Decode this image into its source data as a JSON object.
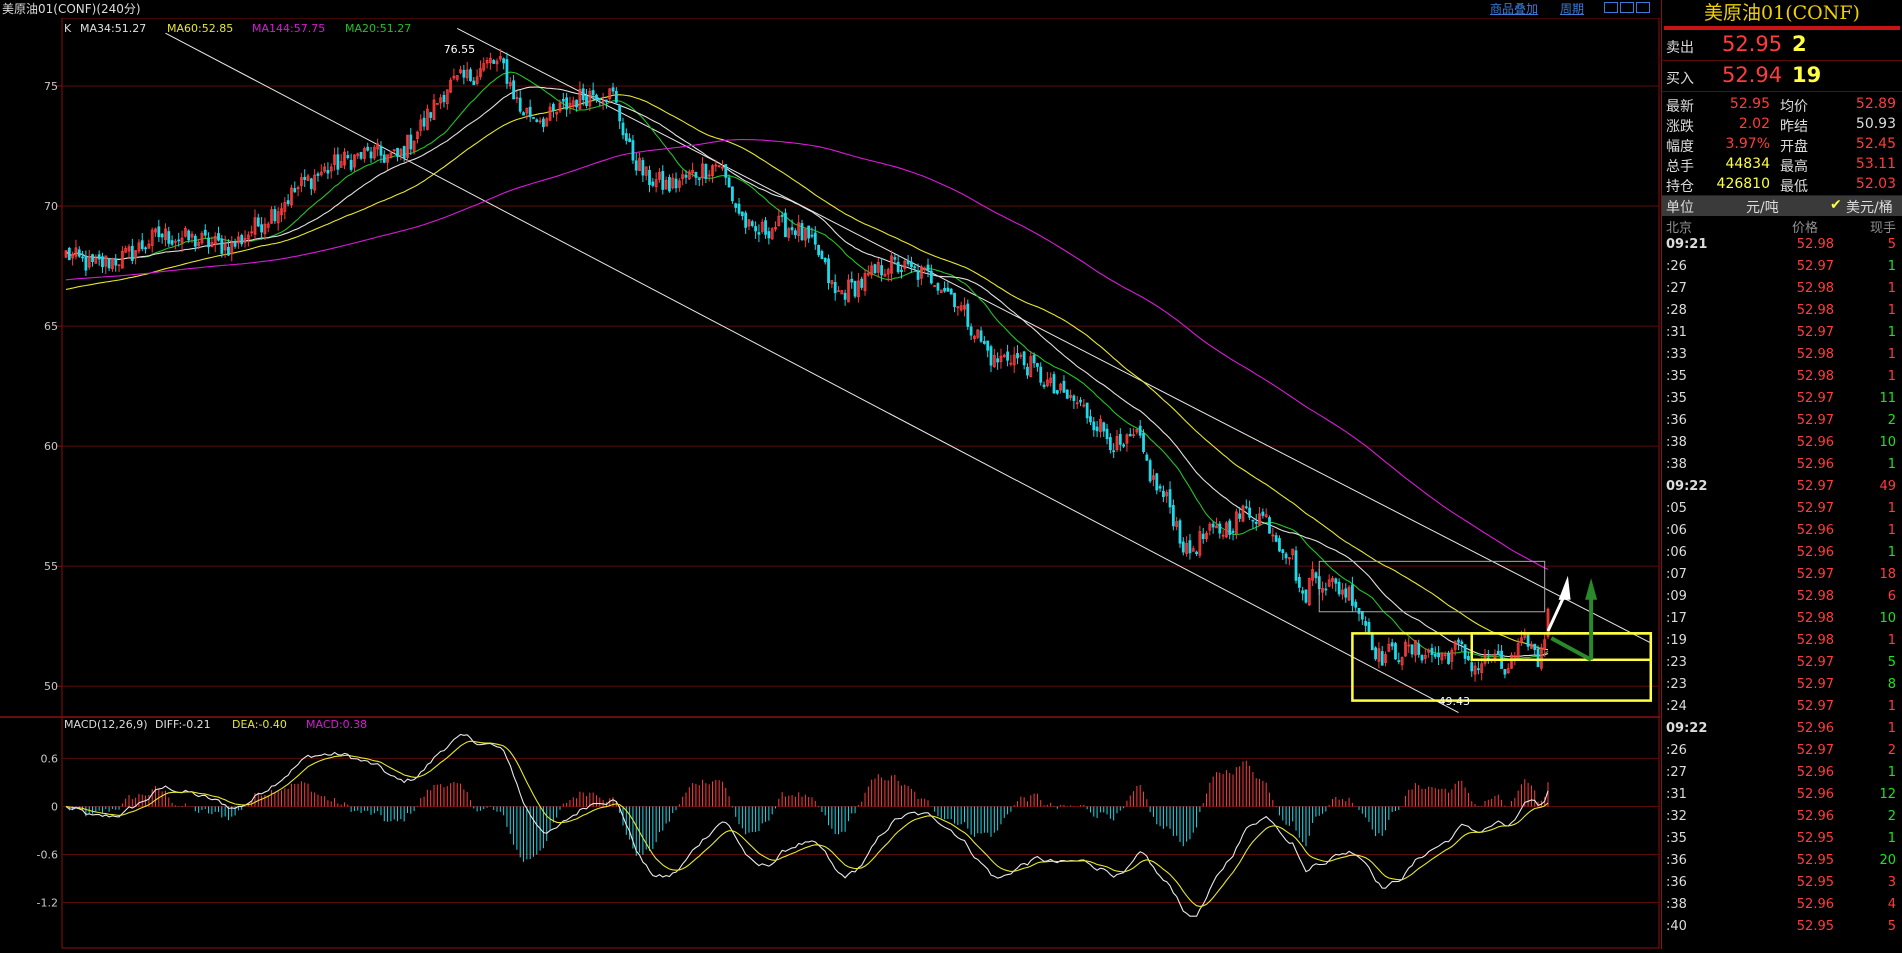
{
  "window": {
    "title": "美原油01(CONF)(240分)",
    "link_overlay": "商品叠加",
    "link_period": "周期"
  },
  "legend": {
    "k": "K",
    "ma34": "MA34:51.27",
    "ma60": "MA60:52.85",
    "ma144": "MA144:57.75",
    "ma20": "MA20:51.27"
  },
  "macd_legend": {
    "name": "MACD(12,26,9)",
    "diff": "DIFF:-0.21",
    "dea": "DEA:-0.40",
    "macd": "MACD:0.38"
  },
  "colors": {
    "up": "#ff3c3c",
    "down": "#20d8e8",
    "ma34": "#e0e0e0",
    "ma60": "#e6e62e",
    "ma144": "#d81ad8",
    "ma20": "#21c421",
    "grid": "#5a0c0c",
    "yellow": "#ffff40",
    "green_text": "#20e020"
  },
  "chart_data": [
    {
      "type": "candlestick",
      "title": "美原油01(CONF)(240分)",
      "y_ticks": [
        75,
        70,
        65,
        60,
        55,
        50
      ],
      "ylim": [
        48.8,
        77.5
      ],
      "annotations": {
        "high_label": "76.55",
        "low_label": "49.43"
      },
      "series": [
        {
          "name": "MA34",
          "last": 51.27
        },
        {
          "name": "MA60",
          "last": 52.85
        },
        {
          "name": "MA144",
          "last": 57.75
        },
        {
          "name": "MA20",
          "last": 51.27
        }
      ],
      "price_path": [
        [
          0,
          68.0
        ],
        [
          8,
          67.5
        ],
        [
          18,
          67.9
        ],
        [
          28,
          68.8
        ],
        [
          38,
          68.6
        ],
        [
          50,
          68.3
        ],
        [
          62,
          69.7
        ],
        [
          72,
          71.0
        ],
        [
          82,
          71.8
        ],
        [
          92,
          72.2
        ],
        [
          100,
          72.0
        ],
        [
          108,
          73.5
        ],
        [
          115,
          75.0
        ],
        [
          122,
          75.4
        ],
        [
          128,
          76.0
        ],
        [
          132,
          75.8
        ],
        [
          137,
          74.0
        ],
        [
          145,
          73.6
        ],
        [
          153,
          74.4
        ],
        [
          160,
          74.8
        ],
        [
          165,
          74.6
        ],
        [
          170,
          72.3
        ],
        [
          175,
          71.2
        ],
        [
          182,
          70.8
        ],
        [
          190,
          71.4
        ],
        [
          197,
          71.8
        ],
        [
          202,
          70.0
        ],
        [
          207,
          68.8
        ],
        [
          214,
          69.2
        ],
        [
          220,
          69.1
        ],
        [
          227,
          68.0
        ],
        [
          232,
          66.3
        ],
        [
          240,
          66.8
        ],
        [
          248,
          67.6
        ],
        [
          255,
          67.3
        ],
        [
          262,
          67.0
        ],
        [
          268,
          66.2
        ],
        [
          274,
          64.8
        ],
        [
          280,
          63.5
        ],
        [
          285,
          63.8
        ],
        [
          292,
          63.2
        ],
        [
          298,
          62.3
        ],
        [
          305,
          61.8
        ],
        [
          312,
          60.8
        ],
        [
          318,
          59.8
        ],
        [
          323,
          60.4
        ],
        [
          328,
          58.5
        ],
        [
          333,
          57.5
        ],
        [
          338,
          55.5
        ],
        [
          343,
          56.2
        ],
        [
          350,
          56.6
        ],
        [
          356,
          57.3
        ],
        [
          362,
          57.0
        ],
        [
          366,
          56.0
        ],
        [
          370,
          55.4
        ],
        [
          373,
          53.5
        ],
        [
          376,
          54.7
        ],
        [
          380,
          54.3
        ],
        [
          384,
          54.1
        ],
        [
          388,
          53.8
        ],
        [
          392,
          52.6
        ],
        [
          396,
          51.2
        ],
        [
          400,
          51.4
        ],
        [
          408,
          51.5
        ],
        [
          415,
          51.2
        ],
        [
          420,
          51.6
        ],
        [
          425,
          50.8
        ],
        [
          430,
          51.2
        ],
        [
          434,
          50.6
        ],
        [
          438,
          51.4
        ],
        [
          441,
          52.0
        ],
        [
          444,
          51.0
        ],
        [
          447,
          52.9
        ]
      ],
      "n_bars": 448
    },
    {
      "type": "macd",
      "name": "MACD(12,26,9)",
      "y_ticks": [
        0.6,
        0,
        -0.6,
        -1.2
      ],
      "ylim": [
        -1.78,
        1.08
      ],
      "diff_last": -0.21,
      "dea_last": -0.4,
      "macd_last": 0.38
    }
  ],
  "panel": {
    "title": "美原油01(CONF)",
    "sell": {
      "label": "卖出",
      "price": "52.95",
      "vol": "2"
    },
    "buy": {
      "label": "买入",
      "price": "52.94",
      "vol": "19"
    },
    "stats": [
      {
        "l1": "最新",
        "v1": "52.95",
        "c1": "#ff3c3c",
        "l2": "均价",
        "v2": "52.89",
        "c2": "#ff3c3c"
      },
      {
        "l1": "涨跌",
        "v1": "2.02",
        "c1": "#ff3c3c",
        "l2": "昨结",
        "v2": "50.93",
        "c2": "#dcdcdc"
      },
      {
        "l1": "幅度",
        "v1": "3.97%",
        "c1": "#ff3c3c",
        "l2": "开盘",
        "v2": "52.45",
        "c2": "#ff3c3c"
      },
      {
        "l1": "总手",
        "v1": "44834",
        "c1": "#ffff40",
        "l2": "最高",
        "v2": "53.11",
        "c2": "#ff3c3c"
      },
      {
        "l1": "持仓",
        "v1": "426810",
        "c1": "#ffff40",
        "l2": "最低",
        "v2": "52.03",
        "c2": "#ff3c3c"
      }
    ],
    "unit": {
      "label": "单位",
      "val1": "元/吨",
      "check": "✔",
      "val2": "美元/桶"
    },
    "tick_header": {
      "time": "北京",
      "price": "价格",
      "vol": "现手"
    },
    "ticks": [
      {
        "t": "09:21",
        "p": "52.98",
        "v": "5",
        "c": "#ff3c3c"
      },
      {
        "t": ":26",
        "p": "52.97",
        "v": "1",
        "c": "#20e020"
      },
      {
        "t": ":27",
        "p": "52.98",
        "v": "1",
        "c": "#ff3c3c"
      },
      {
        "t": ":28",
        "p": "52.98",
        "v": "1",
        "c": "#ff3c3c"
      },
      {
        "t": ":31",
        "p": "52.97",
        "v": "1",
        "c": "#20e020"
      },
      {
        "t": ":33",
        "p": "52.98",
        "v": "1",
        "c": "#ff3c3c"
      },
      {
        "t": ":35",
        "p": "52.98",
        "v": "1",
        "c": "#ff3c3c"
      },
      {
        "t": ":35",
        "p": "52.97",
        "v": "11",
        "c": "#20e020"
      },
      {
        "t": ":36",
        "p": "52.97",
        "v": "2",
        "c": "#20e020"
      },
      {
        "t": ":38",
        "p": "52.96",
        "v": "10",
        "c": "#20e020"
      },
      {
        "t": ":38",
        "p": "52.96",
        "v": "1",
        "c": "#20e020"
      },
      {
        "t": "09:22",
        "p": "52.97",
        "v": "49",
        "c": "#ff3c3c"
      },
      {
        "t": ":05",
        "p": "52.97",
        "v": "1",
        "c": "#ff3c3c"
      },
      {
        "t": ":06",
        "p": "52.96",
        "v": "1",
        "c": "#ff3c3c"
      },
      {
        "t": ":06",
        "p": "52.96",
        "v": "1",
        "c": "#20e020"
      },
      {
        "t": ":07",
        "p": "52.97",
        "v": "18",
        "c": "#ff3c3c"
      },
      {
        "t": ":09",
        "p": "52.98",
        "v": "6",
        "c": "#ff3c3c"
      },
      {
        "t": ":17",
        "p": "52.98",
        "v": "10",
        "c": "#20e020"
      },
      {
        "t": ":19",
        "p": "52.98",
        "v": "1",
        "c": "#ff3c3c"
      },
      {
        "t": ":23",
        "p": "52.97",
        "v": "5",
        "c": "#20e020"
      },
      {
        "t": ":23",
        "p": "52.97",
        "v": "8",
        "c": "#20e020"
      },
      {
        "t": ":24",
        "p": "52.97",
        "v": "1",
        "c": "#ff3c3c"
      },
      {
        "t": "09:22",
        "p": "52.96",
        "v": "1",
        "c": "#ff3c3c"
      },
      {
        "t": ":26",
        "p": "52.97",
        "v": "2",
        "c": "#ff3c3c"
      },
      {
        "t": ":27",
        "p": "52.96",
        "v": "1",
        "c": "#20e020"
      },
      {
        "t": ":31",
        "p": "52.96",
        "v": "12",
        "c": "#20e020"
      },
      {
        "t": ":32",
        "p": "52.96",
        "v": "2",
        "c": "#20e020"
      },
      {
        "t": ":35",
        "p": "52.95",
        "v": "1",
        "c": "#20e020"
      },
      {
        "t": ":36",
        "p": "52.95",
        "v": "20",
        "c": "#20e020"
      },
      {
        "t": ":36",
        "p": "52.95",
        "v": "3",
        "c": "#ff3c3c"
      },
      {
        "t": ":38",
        "p": "52.96",
        "v": "4",
        "c": "#ff3c3c"
      },
      {
        "t": ":40",
        "p": "52.95",
        "v": "5",
        "c": "#ff3c3c"
      }
    ]
  }
}
